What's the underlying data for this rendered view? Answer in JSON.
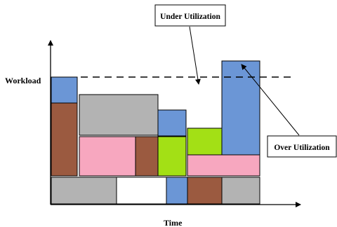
{
  "labels": {
    "y_axis": "Workload",
    "x_axis": "Time",
    "under_callout": "Under Utilization",
    "over_callout": "Over Utilization"
  },
  "colors": {
    "blue": "#6b96d6",
    "brown": "#9b5a40",
    "gray": "#b3b3b3",
    "pink": "#f7a7bf",
    "green": "#a3e015",
    "white": "#ffffff",
    "outline": "#000000",
    "background": "#ffffff"
  },
  "blocks": [
    {
      "name": "block-blue-top-left",
      "color": "blue"
    },
    {
      "name": "block-brown-left",
      "color": "brown"
    },
    {
      "name": "block-gray-upper",
      "color": "gray"
    },
    {
      "name": "block-pink-middle",
      "color": "pink"
    },
    {
      "name": "block-brown-middle",
      "color": "brown"
    },
    {
      "name": "block-blue-small",
      "color": "blue"
    },
    {
      "name": "block-green-left",
      "color": "green"
    },
    {
      "name": "block-green-right",
      "color": "green"
    },
    {
      "name": "block-pink-right",
      "color": "pink"
    },
    {
      "name": "block-blue-tall",
      "color": "blue"
    },
    {
      "name": "block-gray-bottom-left",
      "color": "gray"
    },
    {
      "name": "block-white-bottom",
      "color": "white"
    },
    {
      "name": "block-blue-bottom",
      "color": "blue"
    },
    {
      "name": "block-brown-bottom",
      "color": "brown"
    },
    {
      "name": "block-gray-bottom-right",
      "color": "gray"
    }
  ]
}
